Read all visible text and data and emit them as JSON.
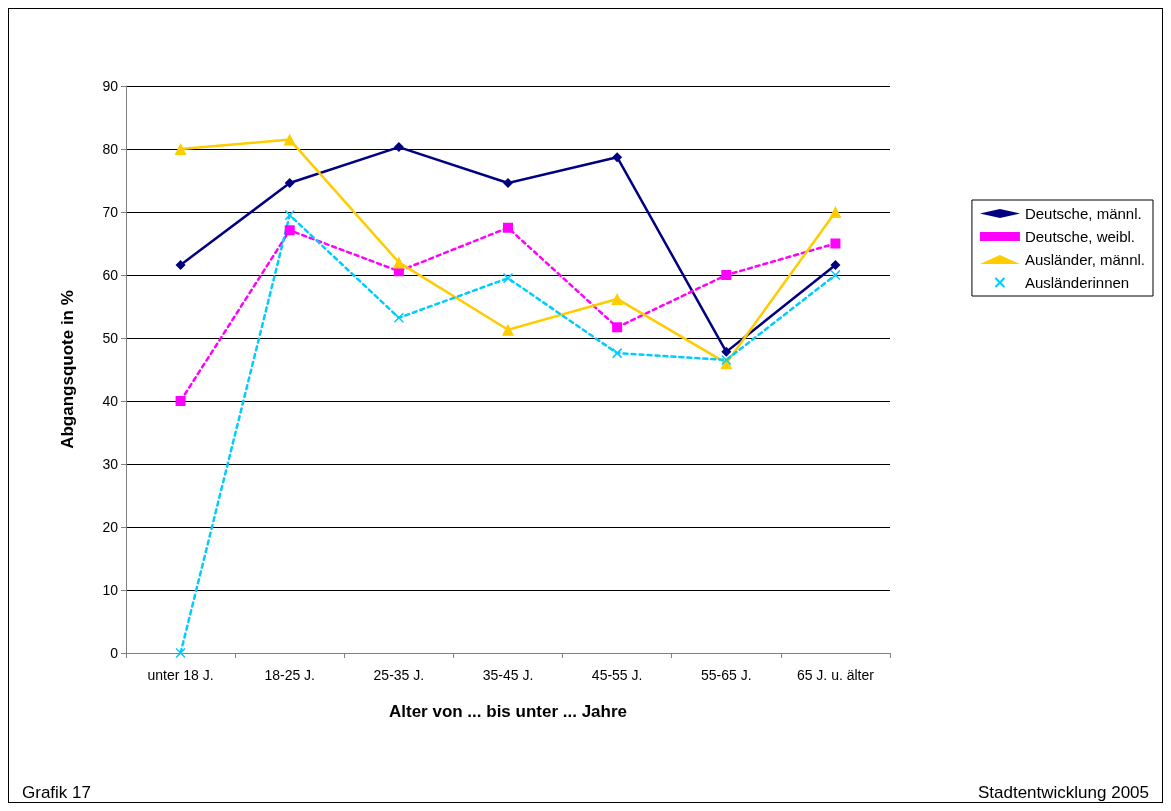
{
  "chart_data": {
    "type": "line",
    "xlabel": "Alter von ... bis unter ... Jahre",
    "ylabel": "Abgangsquote in %",
    "categories": [
      "unter 18 J.",
      "18-25 J.",
      "25-35 J.",
      "35-45 J.",
      "45-55 J.",
      "55-65 J.",
      "65 J. u. älter"
    ],
    "series": [
      {
        "name": "Deutsche, männl.",
        "color": "#000080",
        "marker": "diamond",
        "line_style": "solid",
        "values": [
          61.6,
          74.6,
          80.3,
          74.6,
          78.7,
          47.8,
          61.6
        ]
      },
      {
        "name": "Deutsche, weibl.",
        "color": "#ff00ff",
        "marker": "square",
        "line_style": "dashed",
        "values": [
          40,
          67.1,
          60.6,
          67.5,
          51.7,
          60,
          65
        ]
      },
      {
        "name": "Ausländer, männl.",
        "color": "#ffcc00",
        "marker": "triangle",
        "line_style": "solid",
        "values": [
          80,
          81.5,
          62,
          51.3,
          56.2,
          46,
          70
        ]
      },
      {
        "name": "Ausländerinnen",
        "color": "#00ccff",
        "marker": "cross",
        "line_style": "dashed",
        "values": [
          0,
          69.5,
          53.2,
          59.5,
          47.6,
          46.5,
          60
        ]
      }
    ],
    "ylim": [
      0,
      90
    ],
    "yticks": [
      0,
      10,
      20,
      30,
      40,
      50,
      60,
      70,
      80,
      90
    ],
    "grid": "y",
    "legend": "right",
    "annotations": [
      "Grafik 17",
      "Stadtentwicklung 2005"
    ]
  }
}
